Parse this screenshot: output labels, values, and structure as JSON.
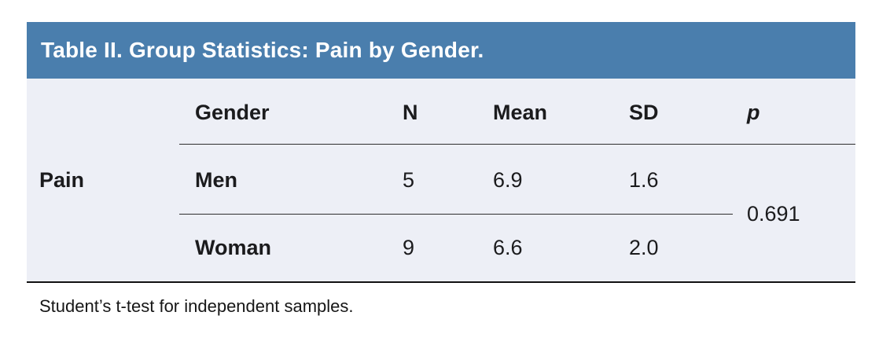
{
  "title": "Table II. Group Statistics: Pain by Gender.",
  "footnote": "Student’s t-test for independent samples.",
  "colors": {
    "header_bg": "#4a7ead",
    "body_bg": "#edeff6",
    "rule": "#2e2e2e",
    "title_text": "#ffffff",
    "body_text": "#1b1b1d"
  },
  "chart_data": {
    "type": "table",
    "title": "Table II. Group Statistics: Pain by Gender.",
    "row_group": "Pain",
    "columns": [
      "Gender",
      "N",
      "Mean",
      "SD",
      "p"
    ],
    "rows": [
      {
        "gender": "Men",
        "n": "5",
        "mean": "6.9",
        "sd": "1.6"
      },
      {
        "gender": "Woman",
        "n": "9",
        "mean": "6.6",
        "sd": "2.0"
      }
    ],
    "p_value": "0.691",
    "footnote": "Student’s t-test for independent samples."
  }
}
